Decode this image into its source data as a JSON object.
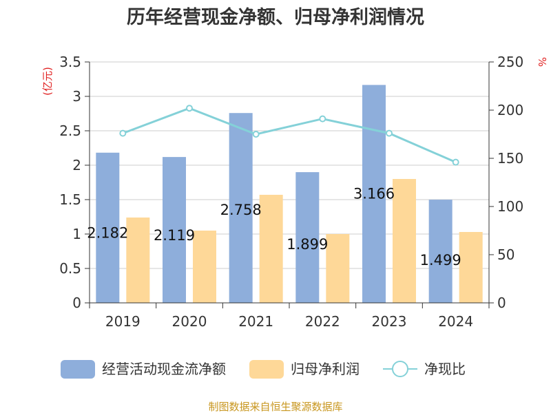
{
  "chart_data": {
    "type": "bar",
    "title": "历年经营现金净额、归母净利润情况",
    "categories": [
      "2019",
      "2020",
      "2021",
      "2022",
      "2023",
      "2024"
    ],
    "left_unit": "(亿元)",
    "right_unit": "%",
    "ylim_left": [
      0,
      3.5
    ],
    "left_ticks": [
      "0",
      "0.5",
      "1",
      "1.5",
      "2",
      "2.5",
      "3",
      "3.5"
    ],
    "ylim_right": [
      0,
      250
    ],
    "right_ticks": [
      "0",
      "50",
      "100",
      "150",
      "200",
      "250"
    ],
    "grid": true,
    "legend_position": "bottom",
    "series": [
      {
        "name": "经营活动现金流净额",
        "kind": "bar",
        "axis": "left",
        "color": "#8eaedb",
        "values": [
          2.182,
          2.119,
          2.758,
          1.899,
          3.166,
          1.499
        ],
        "labels": [
          "2.182",
          "2.119",
          "2.758",
          "1.899",
          "3.166",
          "1.499"
        ]
      },
      {
        "name": "归母净利润",
        "kind": "bar",
        "axis": "left",
        "color": "#fed898",
        "values": [
          1.24,
          1.05,
          1.57,
          1.0,
          1.8,
          1.03
        ]
      },
      {
        "name": "净现比",
        "kind": "line",
        "axis": "right",
        "color": "#84d1d8",
        "values": [
          176,
          202,
          175,
          191,
          176,
          146
        ]
      }
    ]
  },
  "source": "制图数据来自恒生聚源数据库"
}
